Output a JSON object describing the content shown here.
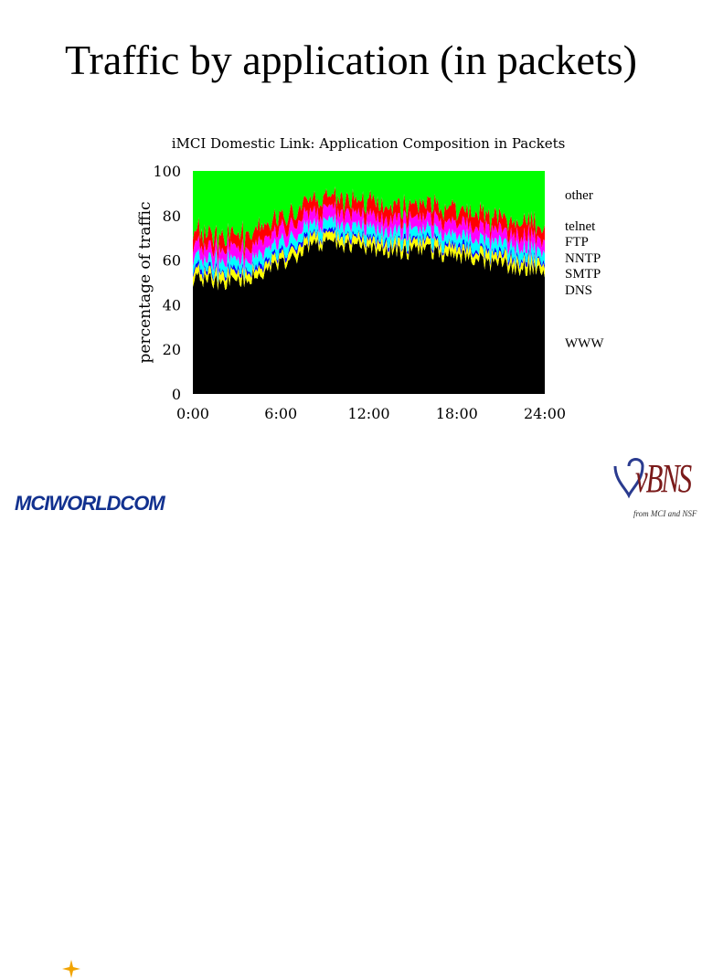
{
  "slide": {
    "title": "Traffic by application (in packets)",
    "logos": {
      "mci": "MCIWORLDCOM",
      "vbns": "vBNS",
      "vbns_sub": "from MCI and NSF"
    }
  },
  "chart_data": {
    "type": "area",
    "title": "iMCI Domestic Link: Application Composition in Packets",
    "ylabel": "percentage of traffic",
    "xlabel": "",
    "ylim": [
      0,
      100
    ],
    "xlim": [
      0,
      24
    ],
    "yticks": [
      "0",
      "20",
      "40",
      "60",
      "80",
      "100"
    ],
    "xticks": [
      "0:00",
      "6:00",
      "12:00",
      "18:00",
      "24:00"
    ],
    "grid": false,
    "legend_placement": "right",
    "x": [
      0,
      1,
      2,
      3,
      4,
      5,
      6,
      7,
      8,
      9,
      10,
      11,
      12,
      13,
      14,
      15,
      16,
      17,
      18,
      19,
      20,
      21,
      22,
      23,
      24
    ],
    "series": [
      {
        "name": "WWW",
        "color": "#000000",
        "values": [
          52,
          51,
          50,
          51,
          52,
          54,
          58,
          62,
          66,
          67,
          67,
          66,
          65,
          65,
          64,
          64,
          64,
          63,
          62,
          61,
          59,
          58,
          57,
          56,
          55
        ]
      },
      {
        "name": "DNS",
        "color": "#ffff00",
        "values": [
          3,
          3,
          3,
          3,
          3,
          3,
          3,
          3,
          3,
          3,
          3,
          3,
          3,
          3,
          3,
          3,
          3,
          3,
          3,
          3,
          3,
          3,
          3,
          3,
          3
        ]
      },
      {
        "name": "SMTP",
        "color": "#0000ff",
        "values": [
          1,
          1,
          1,
          1,
          1,
          1,
          1,
          1,
          1,
          1,
          1,
          1,
          1,
          1,
          1,
          1,
          1,
          1,
          1,
          1,
          1,
          1,
          1,
          1,
          1
        ]
      },
      {
        "name": "NNTP",
        "color": "#00ffff",
        "values": [
          4,
          4,
          4,
          4,
          4,
          4,
          4,
          4,
          4,
          4,
          4,
          4,
          4,
          4,
          4,
          4,
          4,
          4,
          4,
          4,
          4,
          4,
          4,
          4,
          4
        ]
      },
      {
        "name": "FTP",
        "color": "#ff00ff",
        "values": [
          5,
          5,
          5,
          5,
          5,
          5,
          5,
          5,
          5,
          5,
          5,
          5,
          5,
          5,
          5,
          5,
          5,
          5,
          5,
          5,
          5,
          5,
          5,
          5,
          5
        ]
      },
      {
        "name": "telnet",
        "color": "#ff0000",
        "values": [
          5,
          5,
          5,
          5,
          5,
          5,
          5,
          5,
          5,
          5,
          5,
          5,
          5,
          5,
          5,
          5,
          5,
          5,
          5,
          5,
          5,
          5,
          5,
          5,
          5
        ]
      },
      {
        "name": "other",
        "color": "#00ff00",
        "values": [
          30,
          31,
          32,
          31,
          30,
          28,
          24,
          20,
          16,
          15,
          15,
          16,
          17,
          17,
          18,
          18,
          18,
          19,
          20,
          21,
          23,
          24,
          25,
          26,
          27
        ]
      }
    ]
  }
}
